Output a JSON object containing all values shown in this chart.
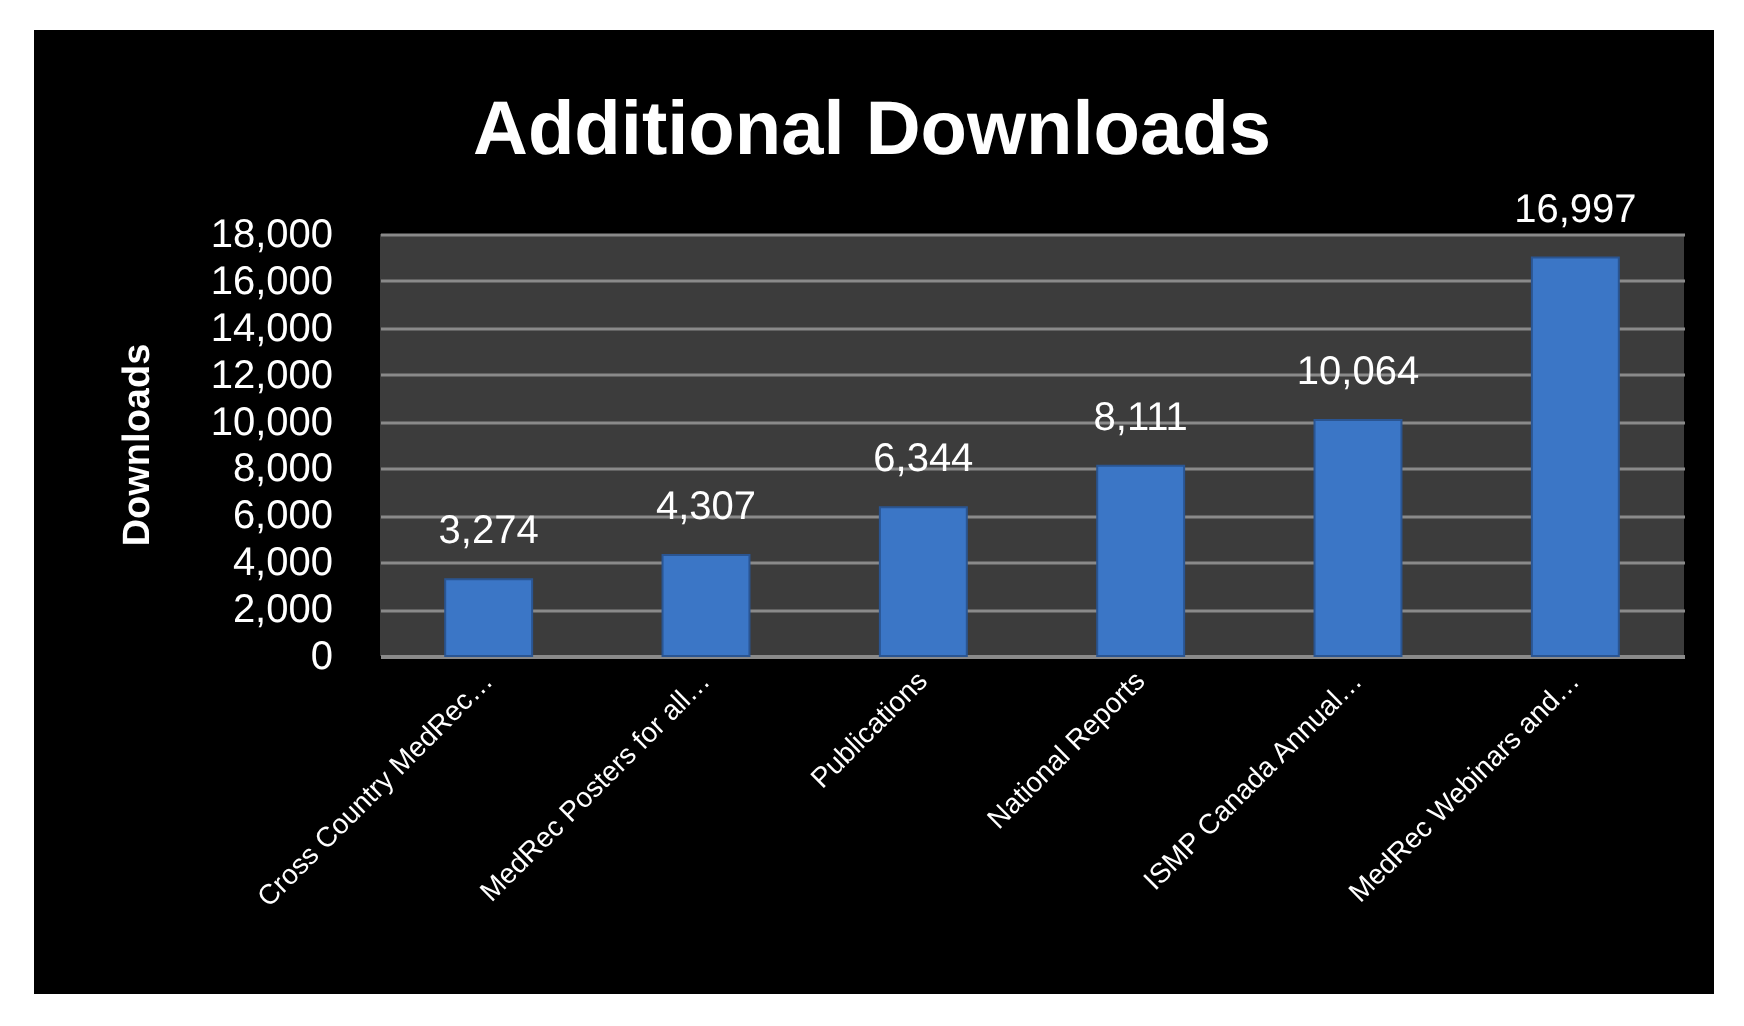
{
  "chart_data": {
    "type": "bar",
    "title": "Additional Downloads",
    "ylabel": "Downloads",
    "categories": [
      "Cross Country MedRec…",
      "MedRec Posters for all…",
      "Publications",
      "National Reports",
      "ISMP Canada Annual…",
      "MedRec Webinars and…"
    ],
    "values": [
      3274,
      4307,
      6344,
      8111,
      10064,
      16997
    ],
    "color": "#3b76c6",
    "value_labels": [
      "3,274",
      "4,307",
      "6,344",
      "8,111",
      "10,064",
      "16,997"
    ],
    "ylim": [
      0,
      18000
    ],
    "yticks": [
      0,
      {
        "value": 2000,
        "label": "2,000"
      },
      {
        "value": 4000,
        "label": "4,000"
      },
      {
        "value": 6000,
        "label": "6,000"
      },
      {
        "value": 8000,
        "label": "8,000"
      },
      {
        "value": 10000,
        "label": "10,000"
      },
      {
        "value": 12000,
        "label": "12,000"
      },
      {
        "value": 14000,
        "label": "14,000"
      },
      {
        "value": 16000,
        "label": "16,000"
      },
      {
        "value": 18000,
        "label": "18,000"
      }
    ],
    "grid": "y"
  }
}
